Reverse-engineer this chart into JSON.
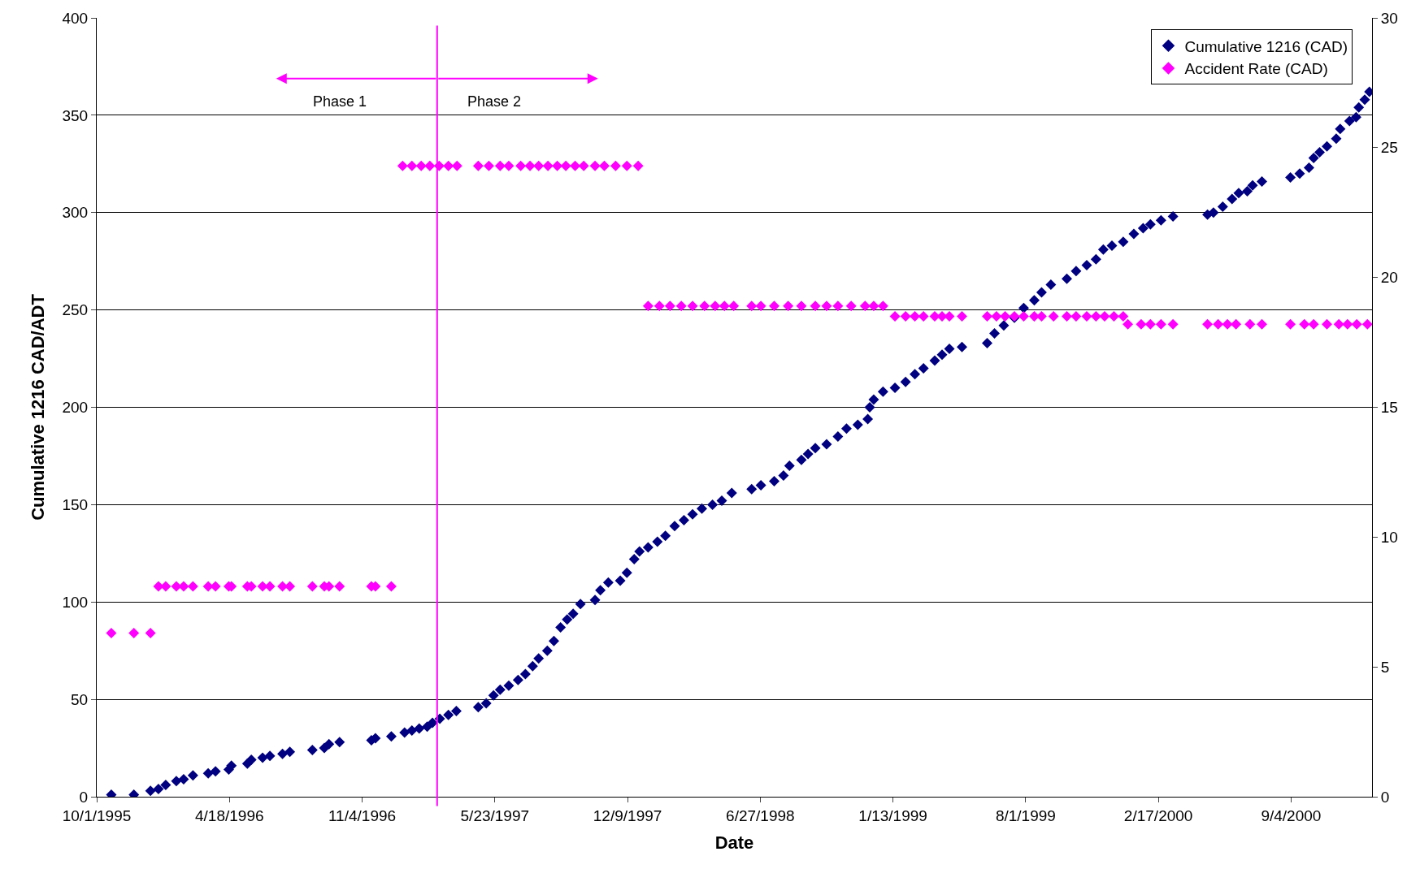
{
  "chart_data": {
    "type": "scatter",
    "xlabel": "Date",
    "ylabel": "Cumulative 1216 CAD/ADT",
    "xlim": [
      "1995-10-01",
      "2001-01-04"
    ],
    "xticks": [
      {
        "value": "1995-10-01",
        "label": "10/1/1995"
      },
      {
        "value": "1996-04-18",
        "label": "4/18/1996"
      },
      {
        "value": "1996-11-04",
        "label": "11/4/1996"
      },
      {
        "value": "1997-05-23",
        "label": "5/23/1997"
      },
      {
        "value": "1997-12-09",
        "label": "12/9/1997"
      },
      {
        "value": "1998-06-27",
        "label": "6/27/1998"
      },
      {
        "value": "1999-01-13",
        "label": "1/13/1999"
      },
      {
        "value": "1999-08-01",
        "label": "8/1/1999"
      },
      {
        "value": "2000-02-17",
        "label": "2/17/2000"
      },
      {
        "value": "2000-09-04",
        "label": "9/4/2000"
      }
    ],
    "ylim": [
      0,
      400
    ],
    "yticks": [
      0,
      50,
      100,
      150,
      200,
      250,
      300,
      350,
      400
    ],
    "y2lim": [
      0,
      30
    ],
    "y2ticks": [
      0,
      5,
      10,
      15,
      20,
      25,
      30
    ],
    "grid": "y",
    "legend": "top right",
    "marker": "diamond",
    "ref_lines": [
      {
        "axis": "x",
        "value": "1997-02-25",
        "color": "#ff00ff"
      }
    ],
    "annotations": [
      "Phase 1",
      "Phase 2"
    ],
    "series": [
      {
        "name": "Cumulative 1216 (CAD)",
        "color": "#000080",
        "x": [
          "1995-10-23",
          "1995-11-26",
          "1995-12-21",
          "1996-01-02",
          "1996-01-13",
          "1996-01-29",
          "1996-02-09",
          "1996-02-23",
          "1996-03-17",
          "1996-03-28",
          "1996-04-17",
          "1996-04-21",
          "1996-05-15",
          "1996-05-21",
          "1996-06-07",
          "1996-06-18",
          "1996-07-07",
          "1996-07-18",
          "1996-08-21",
          "1996-09-08",
          "1996-09-15",
          "1996-10-01",
          "1996-11-18",
          "1996-11-24",
          "1996-12-18",
          "1997-01-07",
          "1997-01-18",
          "1997-01-29",
          "1997-02-10",
          "1997-02-18",
          "1997-03-01",
          "1997-03-14",
          "1997-03-26",
          "1997-04-28",
          "1997-05-10",
          "1997-05-21",
          "1997-05-31",
          "1997-06-13",
          "1997-06-27",
          "1997-07-08",
          "1997-07-19",
          "1997-07-28",
          "1997-08-10",
          "1997-08-20",
          "1997-08-30",
          "1997-09-09",
          "1997-09-18",
          "1997-09-29",
          "1997-10-21",
          "1997-10-29",
          "1997-11-10",
          "1997-11-28",
          "1997-12-08",
          "1997-12-19",
          "1997-12-27",
          "1998-01-09",
          "1998-01-23",
          "1998-02-04",
          "1998-02-18",
          "1998-03-04",
          "1998-03-17",
          "1998-03-31",
          "1998-04-16",
          "1998-04-30",
          "1998-05-15",
          "1998-06-14",
          "1998-06-28",
          "1998-07-18",
          "1998-08-01",
          "1998-08-10",
          "1998-08-28",
          "1998-09-07",
          "1998-09-18",
          "1998-10-05",
          "1998-10-22",
          "1998-11-04",
          "1998-11-21",
          "1998-12-06",
          "1998-12-09",
          "1998-12-15",
          "1998-12-29",
          "1999-01-16",
          "1999-02-01",
          "1999-02-15",
          "1999-02-28",
          "1999-03-17",
          "1999-03-28",
          "1999-04-08",
          "1999-04-27",
          "1999-06-04",
          "1999-06-15",
          "1999-06-29",
          "1999-07-15",
          "1999-07-29",
          "1999-08-14",
          "1999-08-25",
          "1999-09-08",
          "1999-10-02",
          "1999-10-16",
          "1999-11-01",
          "1999-11-15",
          "1999-11-26",
          "1999-12-09",
          "1999-12-26",
          "2000-01-11",
          "2000-01-25",
          "2000-02-05",
          "2000-02-21",
          "2000-03-10",
          "2000-05-01",
          "2000-05-10",
          "2000-05-24",
          "2000-06-07",
          "2000-06-17",
          "2000-06-30",
          "2000-07-08",
          "2000-07-22",
          "2000-09-03",
          "2000-09-17",
          "2000-10-01",
          "2000-10-08",
          "2000-10-17",
          "2000-10-28",
          "2000-11-11",
          "2000-11-17",
          "2000-12-01",
          "2000-12-11",
          "2000-12-15",
          "2000-12-24",
          "2000-12-31"
        ],
        "values": [
          1,
          1,
          3,
          4,
          6,
          8,
          9,
          11,
          12,
          13,
          14,
          16,
          17,
          19,
          20,
          21,
          22,
          23,
          24,
          25,
          27,
          28,
          29,
          30,
          31,
          33,
          34,
          35,
          36,
          38,
          40,
          42,
          44,
          46,
          48,
          52,
          55,
          57,
          60,
          63,
          67,
          71,
          75,
          80,
          87,
          91,
          94,
          99,
          101,
          106,
          110,
          111,
          115,
          122,
          126,
          128,
          131,
          134,
          139,
          142,
          145,
          148,
          150,
          152,
          156,
          158,
          160,
          162,
          165,
          170,
          173,
          176,
          179,
          181,
          185,
          189,
          191,
          194,
          200,
          204,
          208,
          210,
          213,
          217,
          220,
          224,
          227,
          230,
          231,
          233,
          238,
          242,
          246,
          251,
          255,
          259,
          263,
          266,
          270,
          273,
          276,
          281,
          283,
          285,
          289,
          292,
          294,
          296,
          298,
          299,
          300,
          303,
          307,
          310,
          311,
          314,
          316,
          318,
          320,
          323,
          328,
          331,
          334,
          338,
          343,
          347,
          349,
          354,
          358,
          362
        ]
      },
      {
        "name": "Accident Rate (CAD)",
        "color": "#ff00ff",
        "axis": "y2",
        "x": [
          "1995-10-23",
          "1995-11-26",
          "1995-12-21",
          "1996-01-02",
          "1996-01-13",
          "1996-01-29",
          "1996-02-09",
          "1996-02-23",
          "1996-03-17",
          "1996-03-28",
          "1996-04-17",
          "1996-04-21",
          "1996-05-15",
          "1996-05-21",
          "1996-06-07",
          "1996-06-18",
          "1996-07-07",
          "1996-07-18",
          "1996-08-21",
          "1996-09-08",
          "1996-09-15",
          "1996-10-01",
          "1996-11-18",
          "1996-11-24",
          "1996-12-18",
          "1997-01-04",
          "1997-01-18",
          "1997-02-01",
          "1997-02-14",
          "1997-02-28",
          "1997-03-14",
          "1997-03-27",
          "1997-04-28",
          "1997-05-14",
          "1997-05-31",
          "1997-06-13",
          "1997-07-01",
          "1997-07-15",
          "1997-07-28",
          "1997-08-11",
          "1997-08-25",
          "1997-09-07",
          "1997-09-21",
          "1997-10-04",
          "1997-10-21",
          "1997-11-04",
          "1997-11-21",
          "1997-12-08",
          "1997-12-25",
          "1998-01-09",
          "1998-01-26",
          "1998-02-11",
          "1998-02-28",
          "1998-03-17",
          "1998-04-04",
          "1998-04-20",
          "1998-05-04",
          "1998-05-18",
          "1998-06-14",
          "1998-06-28",
          "1998-07-18",
          "1998-08-08",
          "1998-08-28",
          "1998-09-18",
          "1998-10-05",
          "1998-10-22",
          "1998-11-11",
          "1998-12-02",
          "1998-12-15",
          "1998-12-29",
          "1999-01-16",
          "1999-02-01",
          "1999-02-15",
          "1999-02-28",
          "1999-03-17",
          "1999-03-28",
          "1999-04-08",
          "1999-04-27",
          "1999-06-04",
          "1999-06-18",
          "1999-07-01",
          "1999-07-15",
          "1999-07-29",
          "1999-08-14",
          "1999-08-25",
          "1999-09-12",
          "1999-10-02",
          "1999-10-16",
          "1999-11-01",
          "1999-11-15",
          "1999-11-28",
          "1999-12-12",
          "1999-12-26",
          "2000-01-02",
          "2000-01-22",
          "2000-02-05",
          "2000-02-21",
          "2000-03-10",
          "2000-05-01",
          "2000-05-17",
          "2000-05-31",
          "2000-06-13",
          "2000-07-04",
          "2000-07-22",
          "2000-09-03",
          "2000-09-24",
          "2000-10-08",
          "2000-10-28",
          "2000-11-15",
          "2000-11-28",
          "2000-12-12",
          "2000-12-28"
        ],
        "values": [
          6.3,
          6.3,
          6.3,
          8.1,
          8.1,
          8.1,
          8.1,
          8.1,
          8.1,
          8.1,
          8.1,
          8.1,
          8.1,
          8.1,
          8.1,
          8.1,
          8.1,
          8.1,
          8.1,
          8.1,
          8.1,
          8.1,
          8.1,
          8.1,
          8.1,
          24.3,
          24.3,
          24.3,
          24.3,
          24.3,
          24.3,
          24.3,
          24.3,
          24.3,
          24.3,
          24.3,
          24.3,
          24.3,
          24.3,
          24.3,
          24.3,
          24.3,
          24.3,
          24.3,
          24.3,
          24.3,
          24.3,
          24.3,
          24.3,
          18.9,
          18.9,
          18.9,
          18.9,
          18.9,
          18.9,
          18.9,
          18.9,
          18.9,
          18.9,
          18.9,
          18.9,
          18.9,
          18.9,
          18.9,
          18.9,
          18.9,
          18.9,
          18.9,
          18.9,
          18.9,
          18.5,
          18.5,
          18.5,
          18.5,
          18.5,
          18.5,
          18.5,
          18.5,
          18.5,
          18.5,
          18.5,
          18.5,
          18.5,
          18.5,
          18.5,
          18.5,
          18.5,
          18.5,
          18.5,
          18.5,
          18.5,
          18.5,
          18.5,
          18.2,
          18.2,
          18.2,
          18.2,
          18.2,
          18.2,
          18.2,
          18.2,
          18.2,
          18.2,
          18.2,
          18.2,
          18.2,
          18.2,
          18.2,
          18.2,
          18.2,
          18.2,
          18.2
        ]
      }
    ]
  }
}
